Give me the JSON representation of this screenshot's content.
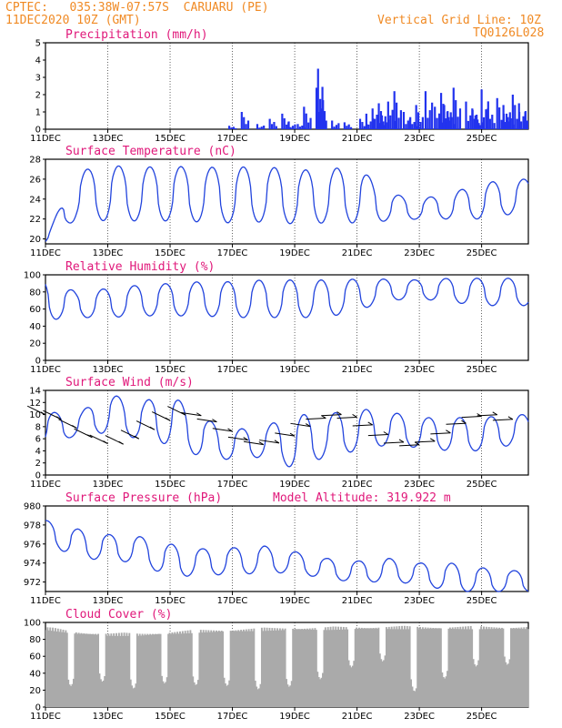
{
  "header": {
    "line1": "CPTEC:   035:38W-07:57S  CARUARU (PE)",
    "line2": "11DEC2020 10Z (GMT)",
    "grid_note": "Vertical Grid Line: 10Z",
    "code": "TQ0126L028"
  },
  "x_labels": [
    "11DEC",
    "13DEC",
    "15DEC",
    "17DEC",
    "19DEC",
    "21DEC",
    "23DEC",
    "25DEC"
  ],
  "colors": {
    "line": "#2244dd",
    "bar": "#2233ee",
    "cloud": "#aaaaaa",
    "title": "#e0187a",
    "header": "#f08a24"
  },
  "chart_data": [
    {
      "type": "bar",
      "title": "Precipitation (mm/h)",
      "x_range_days": [
        11,
        26.5
      ],
      "ylim": [
        0,
        5
      ],
      "yticks": [
        0,
        1,
        2,
        3,
        4,
        5
      ],
      "series": [
        {
          "x": [
            16.9,
            17.3,
            17.8,
            18.2,
            18.6,
            18.8,
            19.1,
            19.3,
            19.7,
            19.75,
            19.8,
            20.2,
            20.6,
            21.1,
            21.3,
            21.5,
            21.7,
            21.8,
            22.0,
            22.2,
            22.5,
            22.7,
            22.9,
            23.2,
            23.5,
            23.7,
            23.8,
            23.9,
            24.1,
            24.5,
            24.7,
            24.8,
            25.0,
            25.2,
            25.5,
            25.7,
            25.8,
            26.0,
            26.2,
            26.4
          ],
          "values": [
            0.2,
            1.0,
            0.3,
            0.6,
            0.9,
            0.4,
            0.3,
            1.3,
            2.4,
            3.5,
            1.0,
            0.5,
            0.4,
            0.6,
            0.9,
            1.2,
            1.5,
            0.8,
            1.6,
            2.2,
            1.0,
            0.6,
            1.4,
            2.2,
            1.3,
            2.1,
            1.4,
            1.0,
            2.4,
            1.6,
            1.2,
            0.8,
            2.3,
            1.2,
            1.8,
            1.4,
            0.9,
            2.0,
            1.5,
            1.0
          ]
        }
      ]
    },
    {
      "type": "line",
      "title": "Surface Temperature (nC)",
      "x_range_days": [
        11,
        26.5
      ],
      "ylim": [
        19.5,
        28
      ],
      "yticks": [
        20,
        22,
        24,
        26,
        28
      ],
      "series": [
        {
          "days": [
            11,
            12,
            13,
            14,
            15,
            16,
            17,
            18,
            19,
            20,
            21,
            22,
            23,
            24,
            25,
            26
          ],
          "max": [
            20.0,
            26.8,
            27.4,
            27.2,
            27.3,
            27.2,
            27.2,
            27.3,
            26.9,
            27.0,
            27.3,
            24.6,
            24.0,
            24.6,
            25.6,
            26.0
          ],
          "min": [
            19.7,
            22.0,
            21.8,
            21.8,
            21.8,
            21.7,
            21.6,
            21.7,
            21.5,
            21.6,
            21.6,
            21.8,
            22.0,
            22.0,
            22.0,
            22.5
          ]
        }
      ]
    },
    {
      "type": "line",
      "title": "Relative Humidity (%)",
      "x_range_days": [
        11,
        26.5
      ],
      "ylim": [
        0,
        100
      ],
      "yticks": [
        0,
        20,
        40,
        60,
        80,
        100
      ],
      "series": [
        {
          "days": [
            11,
            12,
            13,
            14,
            15,
            16,
            17,
            18,
            19,
            20,
            21,
            22,
            23,
            24,
            25,
            26
          ],
          "max": [
            95,
            80,
            84,
            88,
            90,
            92,
            92,
            94,
            94,
            94,
            95,
            95,
            94,
            96,
            96,
            96
          ],
          "min": [
            47,
            50,
            50,
            52,
            52,
            52,
            50,
            50,
            50,
            50,
            58,
            70,
            72,
            68,
            64,
            64
          ]
        }
      ]
    },
    {
      "type": "line",
      "title": "Surface Wind (m/s)",
      "x_range_days": [
        11,
        26.5
      ],
      "ylim": [
        0,
        14
      ],
      "yticks": [
        0,
        2,
        4,
        6,
        8,
        10,
        12,
        14
      ],
      "series": [
        {
          "days": [
            11,
            12,
            13,
            14,
            15,
            16,
            17,
            18,
            19,
            20,
            21,
            22,
            23,
            24,
            25,
            26
          ],
          "max": [
            10.5,
            10.0,
            13.5,
            12.0,
            13.5,
            9.5,
            7.5,
            8.0,
            10.0,
            10.0,
            11.0,
            10.5,
            9.5,
            9.5,
            9.5,
            10.0
          ],
          "min": [
            5.0,
            6.5,
            7.0,
            6.0,
            5.0,
            3.0,
            2.5,
            3.0,
            1.0,
            3.0,
            4.0,
            5.0,
            4.5,
            4.0,
            4.0,
            5.0
          ]
        }
      ]
    },
    {
      "type": "line",
      "title": "Surface Pressure (hPa)",
      "annotation": "Model Altitude: 319.922 m",
      "x_range_days": [
        11,
        26.5
      ],
      "ylim": [
        971,
        980
      ],
      "yticks": [
        972,
        974,
        976,
        978,
        980
      ],
      "series": [
        {
          "days": [
            11,
            12,
            13,
            14,
            15,
            16,
            17,
            18,
            19,
            20,
            21,
            22,
            23,
            24,
            25,
            26
          ],
          "max": [
            978.5,
            977.6,
            977.0,
            976.8,
            976.0,
            975.5,
            975.6,
            975.8,
            975.2,
            974.5,
            974.2,
            974.5,
            974.0,
            974.0,
            973.5,
            973.2
          ],
          "min": [
            976.2,
            974.5,
            974.3,
            974.0,
            972.5,
            972.7,
            972.8,
            972.9,
            973.0,
            972.3,
            972.0,
            972.0,
            971.8,
            971.0,
            971.0,
            971.0
          ]
        }
      ]
    },
    {
      "type": "area",
      "title": "Cloud Cover (%)",
      "x_range_days": [
        11,
        26.5
      ],
      "ylim": [
        0,
        100
      ],
      "yticks": [
        0,
        20,
        40,
        60,
        80,
        100
      ],
      "series": [
        {
          "days": [
            11,
            12,
            13,
            14,
            15,
            16,
            17,
            18,
            19,
            20,
            21,
            22,
            23,
            24,
            25,
            26
          ],
          "max": [
            95,
            90,
            88,
            88,
            90,
            92,
            93,
            94,
            95,
            95,
            96,
            96,
            96,
            96,
            96,
            96
          ],
          "min": [
            5,
            30,
            30,
            20,
            30,
            25,
            25,
            20,
            25,
            35,
            50,
            55,
            10,
            40,
            50,
            50
          ]
        }
      ]
    }
  ]
}
